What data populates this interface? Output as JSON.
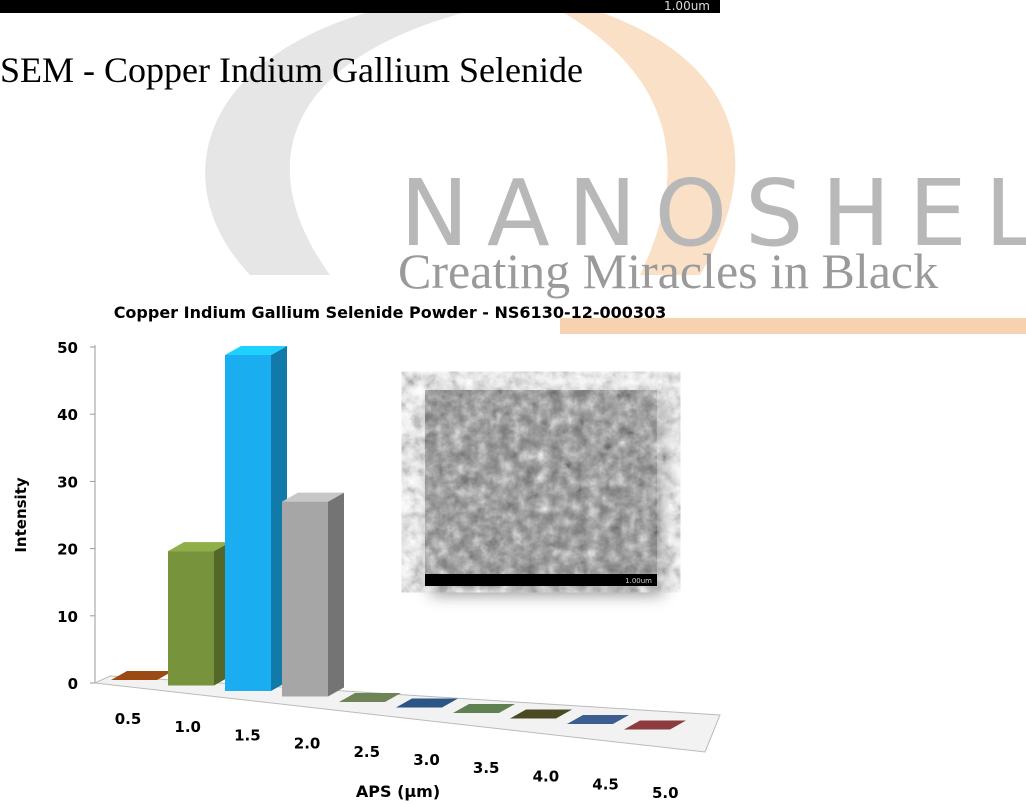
{
  "header": {
    "scale_label": "1.00um"
  },
  "heading": "SEM - Copper Indium Gallium Selenide",
  "watermark": {
    "brand": "NANOSHEL",
    "tagline": "Creating Miracles in Black"
  },
  "chart_data": {
    "type": "bar3d",
    "title": "Copper Indium Gallium Selenide Powder - NS6130-12-000303",
    "y_label": "Intensity",
    "x_label": "APS (μm)",
    "categories": [
      "0.5",
      "1.0",
      "1.5",
      "2.0",
      "2.5",
      "3.0",
      "3.5",
      "4.0",
      "4.5",
      "5.0"
    ],
    "values": [
      0,
      20,
      50,
      29,
      0,
      0,
      0,
      0,
      0,
      0
    ],
    "colors": [
      "#9a4a12",
      "#77933c",
      "#1aaef0",
      "#a6a6a6",
      "#6f8456",
      "#2a5585",
      "#5f8050",
      "#4a4a22",
      "#3e5e90",
      "#8c3c3c"
    ],
    "ylim": [
      0,
      50
    ],
    "yticks": [
      0,
      10,
      20,
      30,
      40,
      50
    ],
    "inset_label": "1.00um"
  }
}
